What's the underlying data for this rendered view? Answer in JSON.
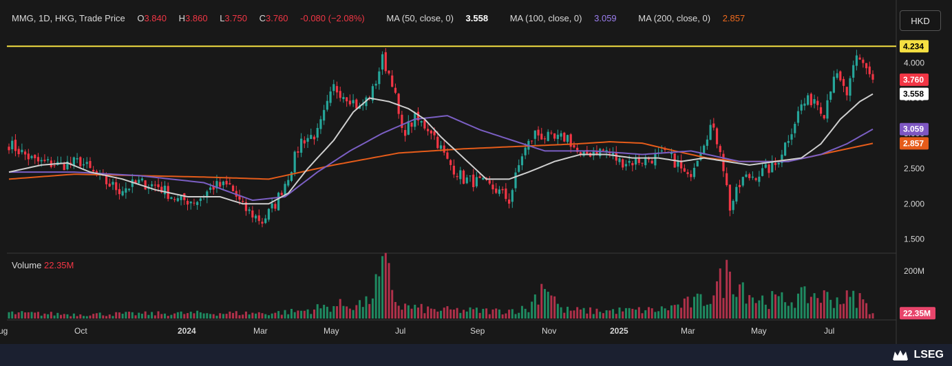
{
  "legend": {
    "symbol": "MMG, 1D, HKG, Trade Price",
    "o_label": "O",
    "o_value": "3.840",
    "h_label": "H",
    "h_value": "3.860",
    "l_label": "L",
    "l_value": "3.750",
    "c_label": "C",
    "c_value": "3.760",
    "change": "-0.080 (−2.08%)",
    "ma50_label": "MA (50, close, 0)",
    "ma50_value": "3.558",
    "ma100_label": "MA (100, close, 0)",
    "ma100_value": "3.059",
    "ma200_label": "MA (200, close, 0)",
    "ma200_value": "2.857"
  },
  "currency_button": "HKD",
  "volume_label": "Volume",
  "volume_value": "22.35M",
  "brand": "LSEG",
  "colors": {
    "up": "#26a69a",
    "down": "#f23645",
    "ma50": "#cfcfcf",
    "ma100": "#7b5fc4",
    "ma200": "#e65c1a",
    "level": "#f5e042",
    "background": "#181818",
    "footer": "#1b2030"
  },
  "chart_data": {
    "type": "candlestick",
    "x_ticks": [
      "Aug",
      "Oct",
      "2024",
      "Mar",
      "May",
      "Jul",
      "Sep",
      "Nov",
      "2025",
      "Mar",
      "May",
      "Jul"
    ],
    "y_ticks": [
      "4.000",
      "3.500",
      "3.000",
      "2.500",
      "2.000",
      "1.500"
    ],
    "ylim": [
      1.3,
      4.5
    ],
    "price_labels": [
      {
        "text": "4.234",
        "value": 4.234,
        "kind": "level"
      },
      {
        "text": "3.760",
        "value": 3.76,
        "kind": "last"
      },
      {
        "text": "3.558",
        "value": 3.558,
        "kind": "ma50"
      },
      {
        "text": "3.059",
        "value": 3.059,
        "kind": "ma100"
      },
      {
        "text": "2.857",
        "value": 2.857,
        "kind": "ma200"
      }
    ],
    "horizontal_level": 4.234,
    "close_anchors": [
      [
        0,
        2.85
      ],
      [
        8,
        2.6
      ],
      [
        16,
        2.55
      ],
      [
        22,
        2.6
      ],
      [
        28,
        2.35
      ],
      [
        34,
        2.2
      ],
      [
        40,
        2.3
      ],
      [
        46,
        2.25
      ],
      [
        52,
        2.05
      ],
      [
        58,
        2.05
      ],
      [
        63,
        2.25
      ],
      [
        68,
        2.25
      ],
      [
        72,
        1.95
      ],
      [
        78,
        1.75
      ],
      [
        82,
        2.0
      ],
      [
        86,
        2.4
      ],
      [
        90,
        2.9
      ],
      [
        95,
        3.0
      ],
      [
        100,
        3.65
      ],
      [
        105,
        3.5
      ],
      [
        108,
        3.35
      ],
      [
        112,
        3.6
      ],
      [
        115,
        4.05
      ],
      [
        118,
        3.75
      ],
      [
        121,
        3.0
      ],
      [
        125,
        3.2
      ],
      [
        130,
        3.05
      ],
      [
        135,
        2.6
      ],
      [
        140,
        2.35
      ],
      [
        145,
        2.3
      ],
      [
        150,
        2.2
      ],
      [
        154,
        2.05
      ],
      [
        158,
        2.7
      ],
      [
        162,
        3.0
      ],
      [
        168,
        2.9
      ],
      [
        172,
        2.95
      ],
      [
        176,
        2.65
      ],
      [
        180,
        2.75
      ],
      [
        184,
        2.75
      ],
      [
        188,
        2.6
      ],
      [
        192,
        2.6
      ],
      [
        198,
        2.65
      ],
      [
        203,
        2.7
      ],
      [
        206,
        2.55
      ],
      [
        209,
        2.35
      ],
      [
        213,
        2.8
      ],
      [
        216,
        3.1
      ],
      [
        219,
        2.8
      ],
      [
        222,
        1.95
      ],
      [
        226,
        2.35
      ],
      [
        232,
        2.45
      ],
      [
        236,
        2.55
      ],
      [
        240,
        2.95
      ],
      [
        244,
        3.4
      ],
      [
        248,
        3.5
      ],
      [
        251,
        3.3
      ],
      [
        254,
        3.85
      ],
      [
        258,
        3.55
      ],
      [
        261,
        4.05
      ],
      [
        264,
        3.95
      ],
      [
        266,
        3.76
      ]
    ],
    "ma50_anchors": [
      [
        0,
        2.45
      ],
      [
        10,
        2.55
      ],
      [
        18,
        2.58
      ],
      [
        25,
        2.45
      ],
      [
        35,
        2.35
      ],
      [
        45,
        2.2
      ],
      [
        55,
        2.1
      ],
      [
        65,
        2.1
      ],
      [
        72,
        2.0
      ],
      [
        80,
        2.0
      ],
      [
        86,
        2.15
      ],
      [
        92,
        2.5
      ],
      [
        100,
        2.9
      ],
      [
        106,
        3.3
      ],
      [
        111,
        3.5
      ],
      [
        117,
        3.45
      ],
      [
        123,
        3.35
      ],
      [
        128,
        3.2
      ],
      [
        133,
        2.95
      ],
      [
        140,
        2.65
      ],
      [
        147,
        2.35
      ],
      [
        154,
        2.35
      ],
      [
        160,
        2.45
      ],
      [
        168,
        2.6
      ],
      [
        176,
        2.7
      ],
      [
        184,
        2.7
      ],
      [
        192,
        2.65
      ],
      [
        200,
        2.65
      ],
      [
        207,
        2.6
      ],
      [
        214,
        2.65
      ],
      [
        221,
        2.6
      ],
      [
        228,
        2.55
      ],
      [
        236,
        2.6
      ],
      [
        244,
        2.65
      ],
      [
        250,
        2.85
      ],
      [
        256,
        3.2
      ],
      [
        262,
        3.45
      ],
      [
        266,
        3.558
      ]
    ],
    "ma100_anchors": [
      [
        0,
        2.45
      ],
      [
        20,
        2.45
      ],
      [
        40,
        2.4
      ],
      [
        60,
        2.3
      ],
      [
        75,
        2.05
      ],
      [
        85,
        2.1
      ],
      [
        95,
        2.45
      ],
      [
        105,
        2.75
      ],
      [
        115,
        3.0
      ],
      [
        125,
        3.2
      ],
      [
        135,
        3.25
      ],
      [
        145,
        3.05
      ],
      [
        155,
        2.9
      ],
      [
        165,
        2.75
      ],
      [
        180,
        2.75
      ],
      [
        195,
        2.7
      ],
      [
        210,
        2.75
      ],
      [
        225,
        2.6
      ],
      [
        240,
        2.6
      ],
      [
        250,
        2.7
      ],
      [
        258,
        2.85
      ],
      [
        266,
        3.059
      ]
    ],
    "ma200_anchors": [
      [
        0,
        2.35
      ],
      [
        20,
        2.42
      ],
      [
        40,
        2.4
      ],
      [
        60,
        2.38
      ],
      [
        80,
        2.35
      ],
      [
        100,
        2.55
      ],
      [
        120,
        2.72
      ],
      [
        140,
        2.78
      ],
      [
        160,
        2.82
      ],
      [
        175,
        2.85
      ],
      [
        185,
        2.88
      ],
      [
        195,
        2.86
      ],
      [
        205,
        2.75
      ],
      [
        215,
        2.65
      ],
      [
        225,
        2.6
      ],
      [
        235,
        2.6
      ],
      [
        245,
        2.65
      ],
      [
        255,
        2.75
      ],
      [
        266,
        2.857
      ]
    ],
    "volume_label": "Volume",
    "volume_last": "22.35M",
    "volume_ticks": [
      "200M",
      "22.35M"
    ],
    "volume_ylim": [
      0,
      240
    ],
    "volume_anchors": [
      [
        0,
        25
      ],
      [
        20,
        20
      ],
      [
        40,
        22
      ],
      [
        60,
        25
      ],
      [
        80,
        25
      ],
      [
        90,
        35
      ],
      [
        100,
        60
      ],
      [
        110,
        70
      ],
      [
        116,
        230
      ],
      [
        120,
        60
      ],
      [
        130,
        40
      ],
      [
        150,
        35
      ],
      [
        160,
        45
      ],
      [
        165,
        180
      ],
      [
        170,
        40
      ],
      [
        180,
        35
      ],
      [
        200,
        40
      ],
      [
        215,
        90
      ],
      [
        222,
        220
      ],
      [
        230,
        90
      ],
      [
        240,
        85
      ],
      [
        248,
        110
      ],
      [
        255,
        90
      ],
      [
        262,
        95
      ],
      [
        266,
        22.35
      ]
    ]
  }
}
